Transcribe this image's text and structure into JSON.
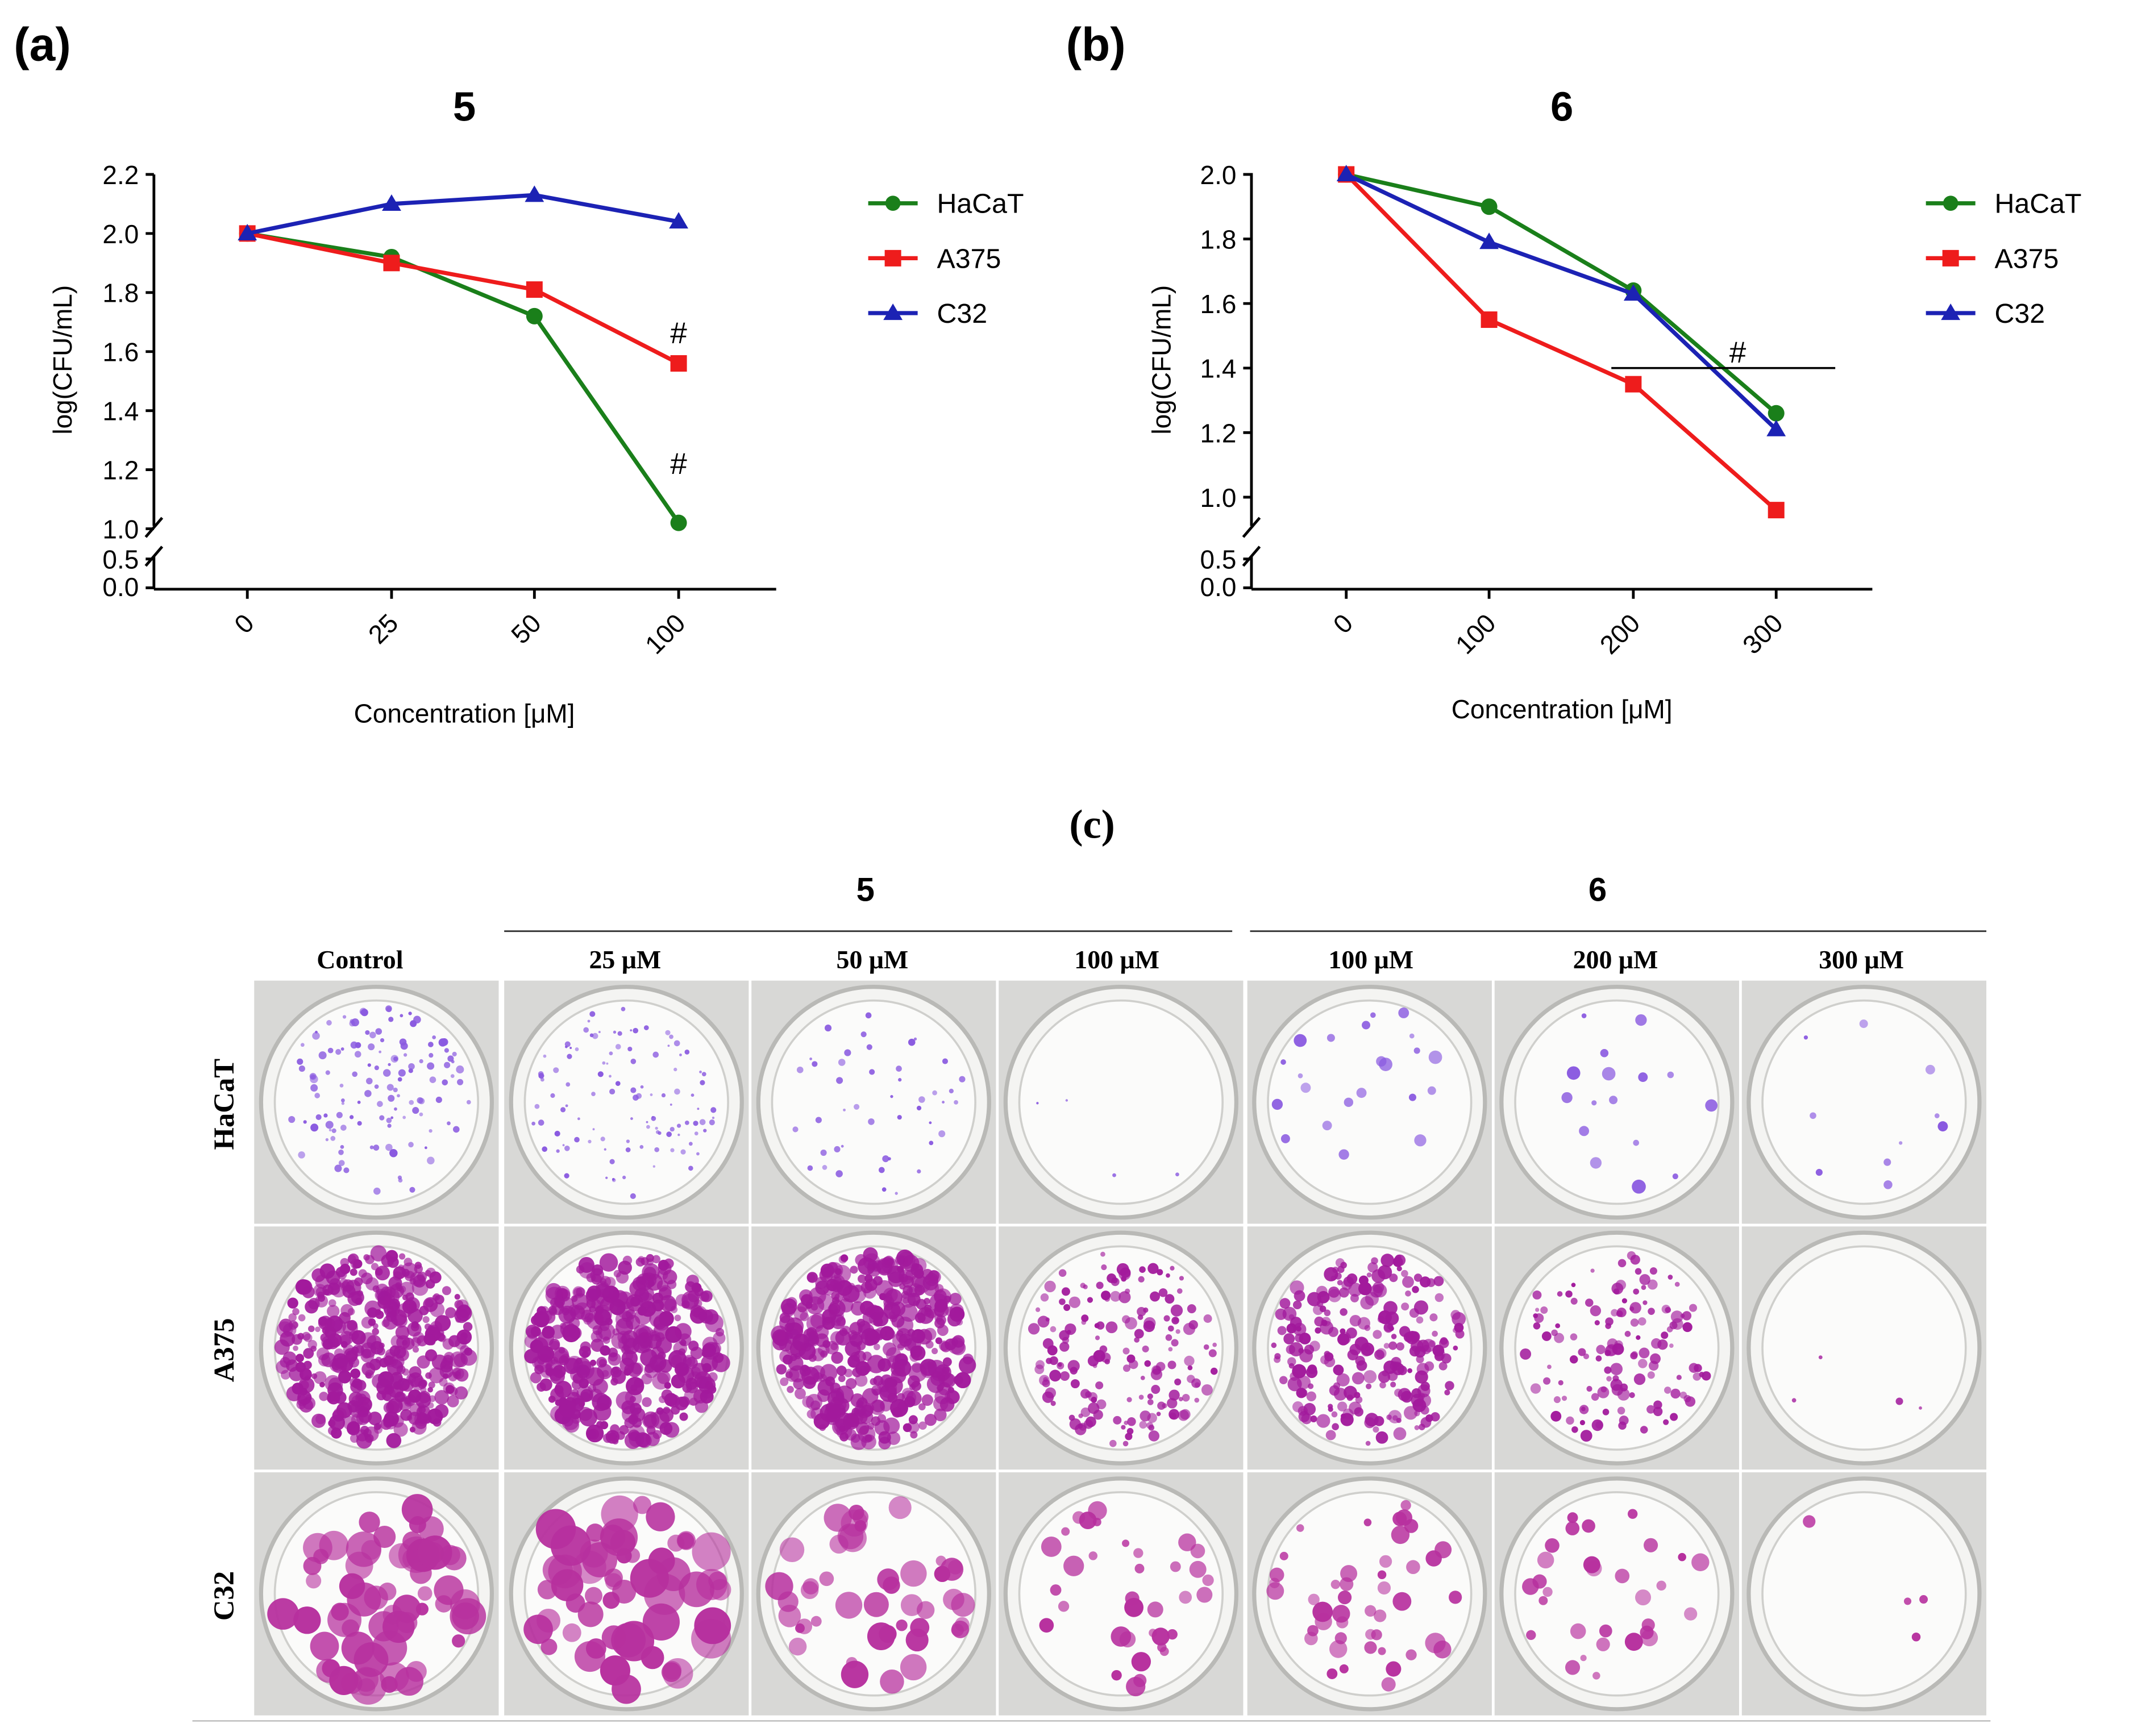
{
  "figure": {
    "panel_labels": {
      "a": "(a)",
      "b": "(b)",
      "c": "(c)"
    }
  },
  "chart_data": [
    {
      "type": "line",
      "panel": "(a)",
      "title": "5",
      "xlabel": "Concentration [μM]",
      "ylabel": "log(CFU/mL)",
      "categories": [
        "0",
        "25",
        "50",
        "100"
      ],
      "ylim": [
        0.0,
        2.2
      ],
      "y_axis_break": [
        0.5,
        1.0
      ],
      "yticks": [
        "0.0",
        "0.5",
        "1.0",
        "1.2",
        "1.4",
        "1.6",
        "1.8",
        "2.0",
        "2.2"
      ],
      "legend_position": "right",
      "series": [
        {
          "name": "HaCaT",
          "marker": "circle",
          "color": "#1a7f1a",
          "values": [
            2.0,
            1.92,
            1.72,
            1.02
          ]
        },
        {
          "name": "A375",
          "marker": "square",
          "color": "#ee1c1c",
          "values": [
            2.0,
            1.9,
            1.81,
            1.56
          ]
        },
        {
          "name": "C32",
          "marker": "triangle",
          "color": "#1c22b4",
          "values": [
            2.0,
            2.1,
            2.13,
            2.04
          ]
        }
      ],
      "annotations": [
        {
          "text": "#",
          "category": "100",
          "series": "A375"
        },
        {
          "text": "#",
          "category": "100",
          "series": "HaCaT"
        }
      ]
    },
    {
      "type": "line",
      "panel": "(b)",
      "title": "6",
      "xlabel": "Concentration [μM]",
      "ylabel": "log(CFU/mL)",
      "categories": [
        "0",
        "100",
        "200",
        "300"
      ],
      "ylim": [
        0.0,
        2.0
      ],
      "y_axis_break": [
        0.5,
        0.85
      ],
      "yticks": [
        "0.0",
        "0.5",
        "1.0",
        "1.2",
        "1.4",
        "1.6",
        "1.8",
        "2.0"
      ],
      "legend_position": "right",
      "series": [
        {
          "name": "HaCaT",
          "marker": "circle",
          "color": "#1a7f1a",
          "values": [
            2.0,
            1.9,
            1.64,
            1.26
          ]
        },
        {
          "name": "A375",
          "marker": "square",
          "color": "#ee1c1c",
          "values": [
            2.0,
            1.55,
            1.35,
            0.96
          ]
        },
        {
          "name": "C32",
          "marker": "triangle",
          "color": "#1c22b4",
          "values": [
            2.0,
            1.79,
            1.63,
            1.21
          ]
        }
      ],
      "annotations": [
        {
          "text": "#",
          "y": 1.4,
          "x_from": "200",
          "x_to": "300",
          "type": "significance-bracket"
        }
      ]
    }
  ],
  "plates": {
    "group_labels": [
      "5",
      "6"
    ],
    "columns": [
      "Control",
      "25 μM",
      "50 μM",
      "100 μM",
      "100 μM",
      "200 μM",
      "300 μM"
    ],
    "rows": [
      {
        "label": "HaCaT",
        "stain": "#8a5ae0",
        "counts": [
          130,
          110,
          45,
          4,
          22,
          16,
          10
        ],
        "sizes": [
          2,
          1.5,
          1.8,
          1.5,
          3.5,
          3.5,
          2.5
        ]
      },
      {
        "label": "A375",
        "stain": "#a21a9c",
        "counts": [
          420,
          400,
          420,
          170,
          240,
          130,
          4
        ],
        "sizes": [
          4,
          4.5,
          4.5,
          3,
          3.5,
          3,
          2
        ]
      },
      {
        "label": "C32",
        "stain": "#b7309e",
        "counts": [
          60,
          55,
          45,
          35,
          45,
          30,
          4
        ],
        "sizes": [
          9,
          10,
          7,
          5,
          5,
          4.5,
          4
        ]
      }
    ]
  }
}
